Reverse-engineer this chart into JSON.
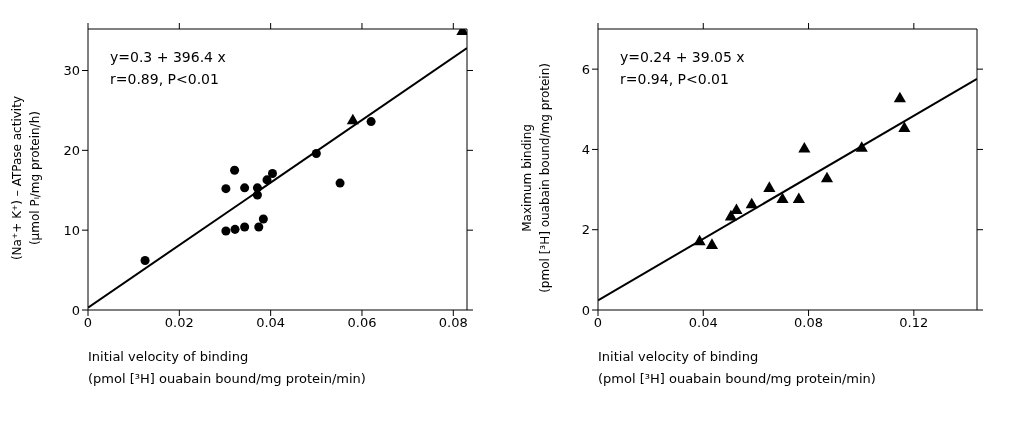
{
  "chart_data": [
    {
      "type": "scatter",
      "xlabel": "Initial velocity of binding\n(pmol [³H] ouabain bound/mg protein/min)",
      "ylabel": "(Na⁺+ K⁺) – ATPase activity\n(µmol Pᵢ/mg protein/h)",
      "xlim": [
        0,
        0.083
      ],
      "xticks": [
        0,
        0.02,
        0.04,
        0.06,
        0.08
      ],
      "ylim": [
        0,
        35.2
      ],
      "yticks": [
        0,
        10,
        20,
        30
      ],
      "annotations": [
        "y=0.3 + 396.4 x",
        "r=0.89, P<0.01"
      ],
      "series": [
        {
          "type": "scatter",
          "marker": "circle",
          "color": "#000000",
          "x": [
            0.0125,
            0.0302,
            0.0322,
            0.0343,
            0.0374,
            0.0384,
            0.0302,
            0.0321,
            0.0343,
            0.0371,
            0.0371,
            0.0392,
            0.0404,
            0.05,
            0.0552,
            0.062
          ],
          "values": [
            6.2,
            9.9,
            10.1,
            10.4,
            10.4,
            11.4,
            15.2,
            17.5,
            15.3,
            15.3,
            14.4,
            16.3,
            17.1,
            19.6,
            15.9,
            23.6
          ]
        },
        {
          "type": "scatter",
          "marker": "triangle",
          "color": "#000000",
          "x": [
            0.058,
            0.082
          ],
          "values": [
            23.7,
            34.9
          ]
        },
        {
          "type": "line",
          "marker": "none",
          "color": "#000000",
          "x": [
            0,
            0.083
          ],
          "values": [
            0.3,
            32.8
          ]
        }
      ]
    },
    {
      "type": "scatter",
      "xlabel": "Initial velocity of binding\n(pmol [³H] ouabain bound/mg protein/min)",
      "ylabel": "Maximum binding\n(pmol [³H] ouabain bound/mg protein)",
      "xlim": [
        0,
        0.144
      ],
      "xticks": [
        0,
        0.04,
        0.08,
        0.12
      ],
      "ylim": [
        0,
        7
      ],
      "yticks": [
        0,
        2,
        4,
        6
      ],
      "annotations": [
        "y=0.24 + 39.05 x",
        "r=0.94, P<0.01"
      ],
      "series": [
        {
          "type": "scatter",
          "marker": "triangle",
          "color": "#000000",
          "x": [
            0.0386,
            0.0433,
            0.0505,
            0.0526,
            0.0584,
            0.0651,
            0.0701,
            0.0763,
            0.0784,
            0.087,
            0.1002,
            0.1147,
            0.1164
          ],
          "values": [
            1.7,
            1.61,
            2.32,
            2.48,
            2.62,
            3.03,
            2.75,
            2.75,
            4.01,
            3.27,
            4.03,
            5.26,
            4.52
          ]
        },
        {
          "type": "line",
          "marker": "none",
          "color": "#000000",
          "x": [
            0,
            0.144
          ],
          "values": [
            0.24,
            5.76
          ]
        }
      ]
    }
  ]
}
